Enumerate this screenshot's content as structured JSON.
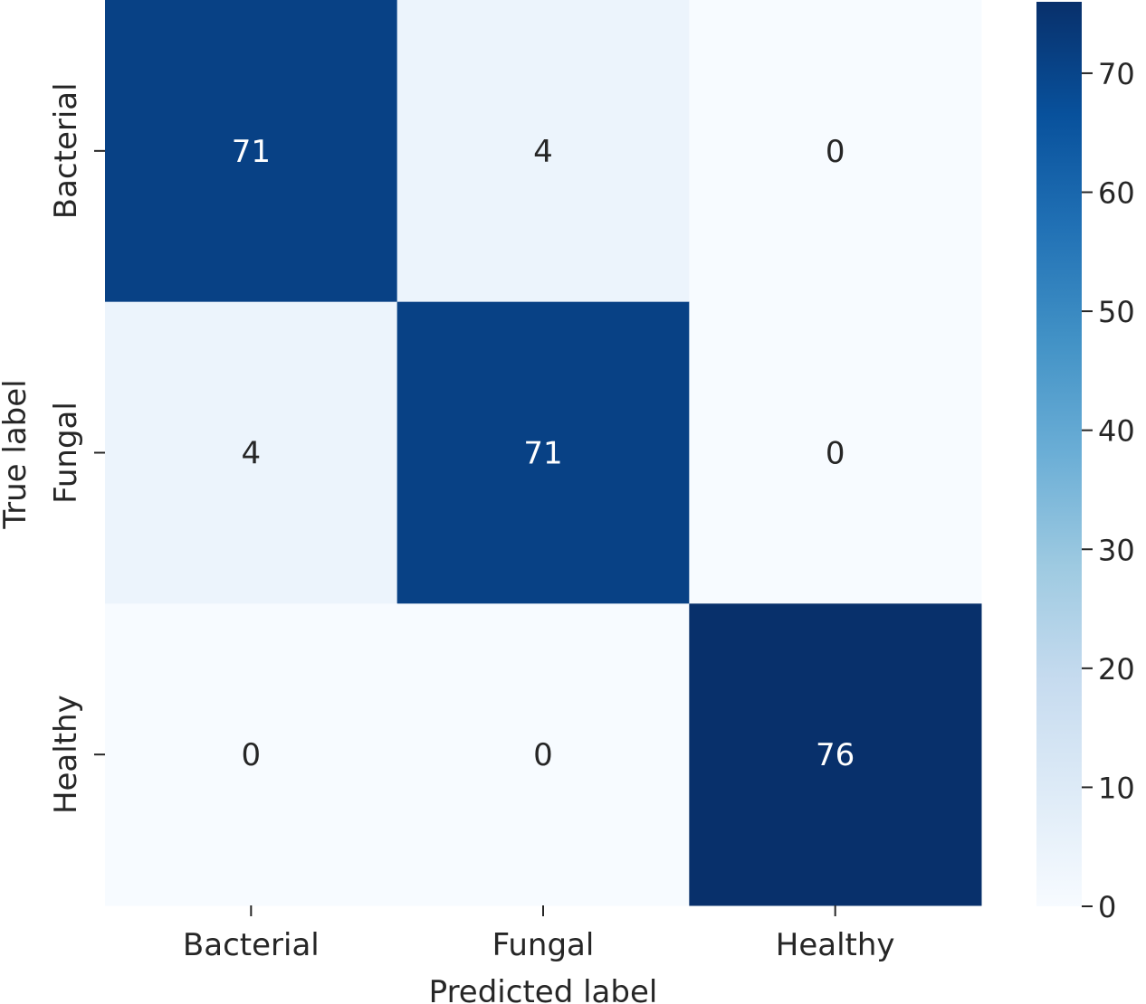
{
  "chart_data": {
    "type": "heatmap",
    "title": "",
    "xlabel": "Predicted label",
    "ylabel": "True label",
    "x_categories": [
      "Bacterial",
      "Fungal",
      "Healthy"
    ],
    "y_categories": [
      "Bacterial",
      "Fungal",
      "Healthy"
    ],
    "values": [
      [
        71,
        4,
        0
      ],
      [
        4,
        71,
        0
      ],
      [
        0,
        0,
        76
      ]
    ],
    "colorscale": "Blues",
    "colorbar": {
      "range": [
        0,
        76
      ],
      "ticks": [
        0,
        10,
        20,
        30,
        40,
        50,
        60,
        70
      ]
    },
    "grid": false
  }
}
